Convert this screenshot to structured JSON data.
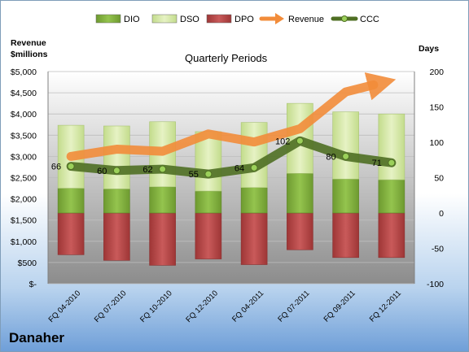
{
  "chart_data": {
    "type": "bar",
    "title": "Quarterly Periods",
    "company": "Danaher",
    "left_axis": {
      "label_line1": "Revenue",
      "label_line2": "$millions",
      "range": [
        0,
        5000
      ],
      "ticks": [
        "$-",
        "$500",
        "$1,000",
        "$1,500",
        "$2,000",
        "$2,500",
        "$3,000",
        "$3,500",
        "$4,000",
        "$4,500",
        "$5,000"
      ]
    },
    "right_axis": {
      "label": "Days",
      "range": [
        -100,
        200
      ],
      "ticks": [
        "-100",
        "-50",
        "0",
        "50",
        "100",
        "150",
        "200"
      ]
    },
    "categories": [
      "FQ 04-2010",
      "FQ 07-2010",
      "FQ 10-2010",
      "FQ 12-2010",
      "FQ 04-2011",
      "FQ 07-2011",
      "FQ 09-2011",
      "FQ 12-2011"
    ],
    "series": [
      {
        "name": "DIO",
        "axis": "right",
        "color": "#7faf3c",
        "values": [
          35,
          34,
          37,
          31,
          36,
          56,
          48,
          47
        ]
      },
      {
        "name": "DSO",
        "axis": "right",
        "color": "#d5e8a3",
        "values": [
          89,
          89,
          92,
          84,
          92,
          99,
          95,
          93
        ]
      },
      {
        "name": "DPO",
        "axis": "right",
        "color": "#b94a4a",
        "values": [
          -59,
          -67,
          -74,
          -65,
          -73,
          -52,
          -63,
          -63
        ]
      },
      {
        "name": "Revenue",
        "axis": "left",
        "color": "#f28c3a",
        "values": [
          3000,
          3170,
          3120,
          3530,
          3340,
          3650,
          4520,
          4800
        ]
      },
      {
        "name": "CCC",
        "axis": "right",
        "color": "#5a7b2a",
        "values": [
          66,
          60,
          62,
          55,
          64,
          102,
          80,
          71
        ]
      }
    ],
    "ccc_labels": [
      "66",
      "60",
      "62",
      "55",
      "64",
      "102",
      "80",
      "71"
    ],
    "legend_position": "top",
    "grid": true
  }
}
